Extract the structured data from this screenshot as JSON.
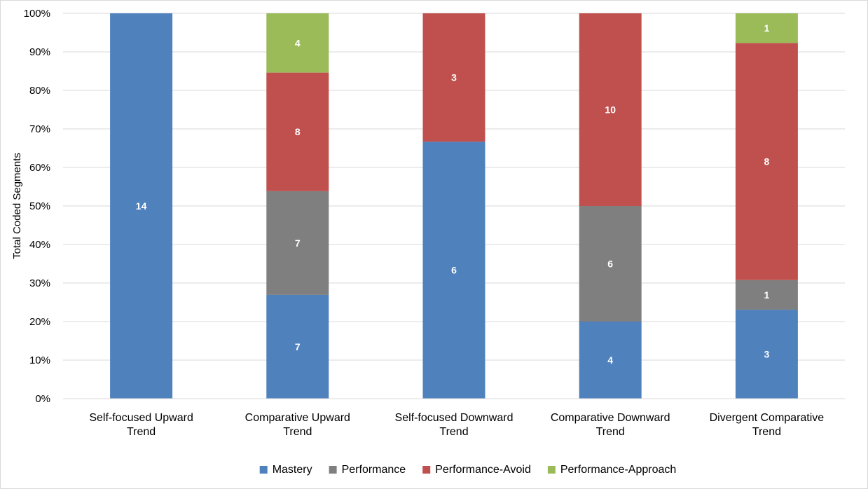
{
  "chart_data": {
    "type": "bar",
    "stacked": true,
    "percent_stacked": true,
    "title": "",
    "xlabel": "",
    "ylabel": "Total Coded Segments",
    "ylim": [
      0,
      100
    ],
    "yticks": [
      "0%",
      "10%",
      "20%",
      "30%",
      "40%",
      "50%",
      "60%",
      "70%",
      "80%",
      "90%",
      "100%"
    ],
    "grid": true,
    "legend_position": "bottom",
    "categories": [
      [
        "Self-focused Upward",
        "Trend"
      ],
      [
        "Comparative Upward",
        "Trend"
      ],
      [
        "Self-focused Downward",
        "Trend"
      ],
      [
        "Comparative Downward",
        "Trend"
      ],
      [
        "Divergent Comparative",
        "Trend"
      ]
    ],
    "series": [
      {
        "name": "Mastery",
        "color": "#4f81bd",
        "values": [
          14,
          7,
          6,
          4,
          3
        ]
      },
      {
        "name": "Performance",
        "color": "#7f7f7f",
        "values": [
          0,
          7,
          0,
          6,
          1
        ]
      },
      {
        "name": "Performance-Avoid",
        "color": "#c0504d",
        "values": [
          0,
          8,
          3,
          10,
          8
        ]
      },
      {
        "name": "Performance-Approach",
        "color": "#9bbb59",
        "values": [
          0,
          4,
          0,
          0,
          1
        ]
      }
    ]
  }
}
